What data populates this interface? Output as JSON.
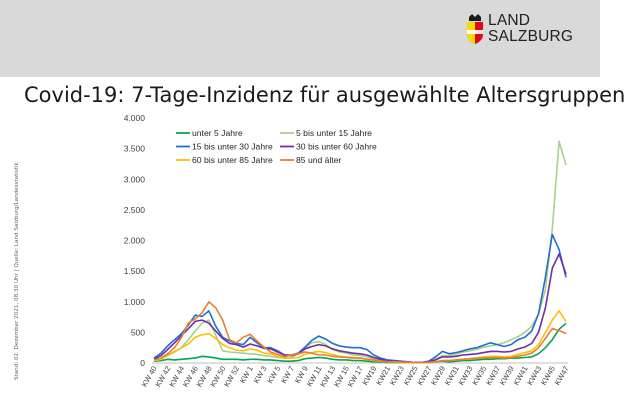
{
  "header": {
    "logo_line1": "LAND",
    "logo_line2": "SALZBURG",
    "title": "Covid-19: 7-Tage-Inzidenz für ausgewählte Altersgruppen"
  },
  "side_note": "Stand: 02. Dezember 2021, 08:30 Uhr | Quelle: Land Salzburg/Landesstatistik",
  "chart_data": {
    "type": "line",
    "title": "",
    "xlabel": "",
    "ylabel": "",
    "ylim": [
      0,
      4000
    ],
    "y_ticks": [
      0,
      500,
      1000,
      1500,
      2000,
      2500,
      3000,
      3500,
      4000
    ],
    "y_tick_labels": [
      "0",
      "500",
      "1.000",
      "1.500",
      "2.000",
      "2.500",
      "3.000",
      "3.500",
      "4.000"
    ],
    "grid": false,
    "legend_position": "top-left",
    "x": [
      "KW 40",
      "KW 41",
      "KW 42",
      "KW 43",
      "KW 44",
      "KW 45",
      "KW 46",
      "KW 47",
      "KW 48",
      "KW 49",
      "KW 50",
      "KW 51",
      "KW 52",
      "KW 53",
      "KW 1",
      "KW 2",
      "KW 3",
      "KW 4",
      "KW 5",
      "KW 6",
      "KW 7",
      "KW 8",
      "KW 9",
      "KW 10",
      "KW 11",
      "KW 12",
      "KW 13",
      "KW 14",
      "KW 15",
      "KW 16",
      "KW 17",
      "KW 18",
      "KW19",
      "KW20",
      "KW21",
      "KW22",
      "KW23",
      "KW24",
      "KW25",
      "KW26",
      "KW27",
      "KW28",
      "KW29",
      "KW30",
      "KW31",
      "KW32",
      "KW33",
      "KW34",
      "KW35",
      "KW36",
      "KW37",
      "KW38",
      "KW39",
      "KW40",
      "KW41",
      "KW42",
      "KW43",
      "KW44",
      "KW45",
      "KW46",
      "KW47"
    ],
    "x_tick_labels": [
      "KW 40",
      "KW 42",
      "KW 44",
      "KW 46",
      "KW 48",
      "KW 50",
      "KW 52",
      "KW 1",
      "KW 3",
      "KW 5",
      "KW 7",
      "KW 9",
      "KW 11",
      "KW 13",
      "KW 15",
      "KW 17",
      "KW19",
      "KW21",
      "KW23",
      "KW25",
      "KW27",
      "KW29",
      "KW31",
      "KW33",
      "KW35",
      "KW37",
      "KW39",
      "KW41",
      "KW43",
      "KW45",
      "KW47"
    ],
    "series": [
      {
        "name": "unter 5 Jahre",
        "color": "#00a650",
        "values": [
          30,
          40,
          60,
          50,
          60,
          70,
          80,
          110,
          100,
          80,
          60,
          60,
          60,
          50,
          60,
          60,
          50,
          50,
          40,
          30,
          30,
          40,
          70,
          80,
          90,
          80,
          60,
          50,
          50,
          40,
          40,
          30,
          20,
          20,
          10,
          10,
          10,
          10,
          5,
          5,
          10,
          20,
          30,
          20,
          30,
          40,
          40,
          50,
          60,
          60,
          70,
          70,
          80,
          80,
          90,
          100,
          150,
          250,
          380,
          550,
          650
        ]
      },
      {
        "name": "5 bis unter 15 Jahre",
        "color": "#a8d08d",
        "values": [
          40,
          60,
          120,
          180,
          250,
          380,
          520,
          650,
          700,
          450,
          200,
          180,
          170,
          160,
          150,
          140,
          120,
          110,
          90,
          80,
          90,
          150,
          250,
          330,
          350,
          300,
          220,
          180,
          160,
          130,
          120,
          100,
          70,
          50,
          30,
          20,
          20,
          10,
          10,
          10,
          20,
          60,
          120,
          120,
          140,
          180,
          200,
          220,
          260,
          280,
          300,
          330,
          380,
          430,
          500,
          600,
          800,
          1200,
          2200,
          3620,
          3230
        ]
      },
      {
        "name": "15 bis unter 30 Jahre",
        "color": "#1f6fd1",
        "values": [
          80,
          160,
          280,
          380,
          480,
          620,
          780,
          760,
          850,
          600,
          420,
          360,
          320,
          300,
          420,
          330,
          250,
          250,
          200,
          130,
          130,
          160,
          260,
          370,
          440,
          390,
          320,
          280,
          260,
          250,
          250,
          220,
          130,
          80,
          50,
          40,
          30,
          20,
          10,
          10,
          30,
          100,
          190,
          150,
          170,
          200,
          230,
          250,
          290,
          330,
          300,
          270,
          300,
          380,
          420,
          520,
          800,
          1400,
          2100,
          1850,
          1400
        ]
      },
      {
        "name": "30 bis unter 60 Jahre",
        "color": "#6f2da8",
        "values": [
          60,
          120,
          220,
          330,
          450,
          560,
          680,
          700,
          650,
          520,
          400,
          320,
          300,
          260,
          310,
          280,
          240,
          230,
          180,
          130,
          120,
          150,
          230,
          270,
          300,
          280,
          230,
          200,
          180,
          160,
          150,
          130,
          90,
          60,
          40,
          30,
          20,
          15,
          10,
          10,
          20,
          50,
          100,
          100,
          110,
          130,
          140,
          150,
          170,
          190,
          190,
          180,
          190,
          230,
          260,
          320,
          500,
          900,
          1550,
          1780,
          1450
        ]
      },
      {
        "name": "60 bis unter 85 Jahre",
        "color": "#ffc000",
        "values": [
          40,
          60,
          130,
          190,
          250,
          310,
          420,
          460,
          480,
          400,
          300,
          250,
          210,
          200,
          230,
          210,
          160,
          150,
          110,
          80,
          80,
          90,
          140,
          170,
          190,
          170,
          140,
          110,
          100,
          90,
          80,
          60,
          40,
          30,
          20,
          15,
          10,
          10,
          5,
          5,
          10,
          20,
          40,
          40,
          50,
          60,
          70,
          80,
          100,
          110,
          110,
          100,
          110,
          140,
          170,
          200,
          300,
          500,
          700,
          850,
          680
        ]
      },
      {
        "name": "85 und älter",
        "color": "#ed7d31",
        "values": [
          50,
          80,
          150,
          250,
          420,
          650,
          720,
          820,
          1000,
          900,
          700,
          380,
          330,
          420,
          470,
          360,
          260,
          180,
          140,
          100,
          130,
          150,
          180,
          160,
          130,
          130,
          110,
          100,
          90,
          80,
          80,
          60,
          50,
          30,
          20,
          20,
          15,
          10,
          5,
          5,
          10,
          20,
          40,
          40,
          50,
          60,
          70,
          80,
          80,
          90,
          90,
          80,
          90,
          110,
          130,
          160,
          250,
          400,
          560,
          530,
          480
        ]
      }
    ]
  }
}
